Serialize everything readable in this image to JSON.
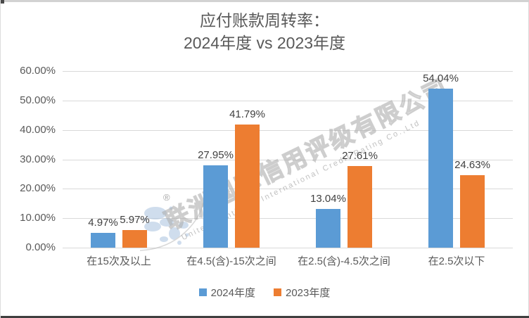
{
  "title": {
    "line1": "应付账款周转率：",
    "line2": "2024年度 vs 2023年度"
  },
  "watermark": {
    "cn": "联洲国际信用评级有限公司",
    "en": "United Continent International Credit Rating Co.,Ltd",
    "reg": "®",
    "globe_icon": "globe-map-logo",
    "color": "#aaaaaa"
  },
  "chart_data": {
    "type": "bar",
    "title": "应付账款周转率：2024年度 vs 2023年度",
    "categories": [
      "在15次及以上",
      "在4.5(含)-15次之间",
      "在2.5(含)-4.5次之间",
      "在2.5次以下"
    ],
    "series": [
      {
        "name": "2024年度",
        "color": "#5B9BD5",
        "values": [
          4.97,
          27.95,
          13.04,
          54.04
        ]
      },
      {
        "name": "2023年度",
        "color": "#ED7D31",
        "values": [
          5.97,
          41.79,
          27.61,
          24.63
        ]
      }
    ],
    "data_label_format": "0.00%",
    "ylabel": "",
    "xlabel": "",
    "ylim": [
      0,
      60
    ],
    "ytick_step": 10,
    "ytick_labels": [
      "0.00%",
      "10.00%",
      "20.00%",
      "30.00%",
      "40.00%",
      "50.00%",
      "60.00%"
    ],
    "grid": true,
    "gridline_color": "#d9d9d9",
    "legend_position": "bottom",
    "text_colors": {
      "axis": "#595959",
      "data_label": "#404040",
      "title": "#595959"
    }
  }
}
